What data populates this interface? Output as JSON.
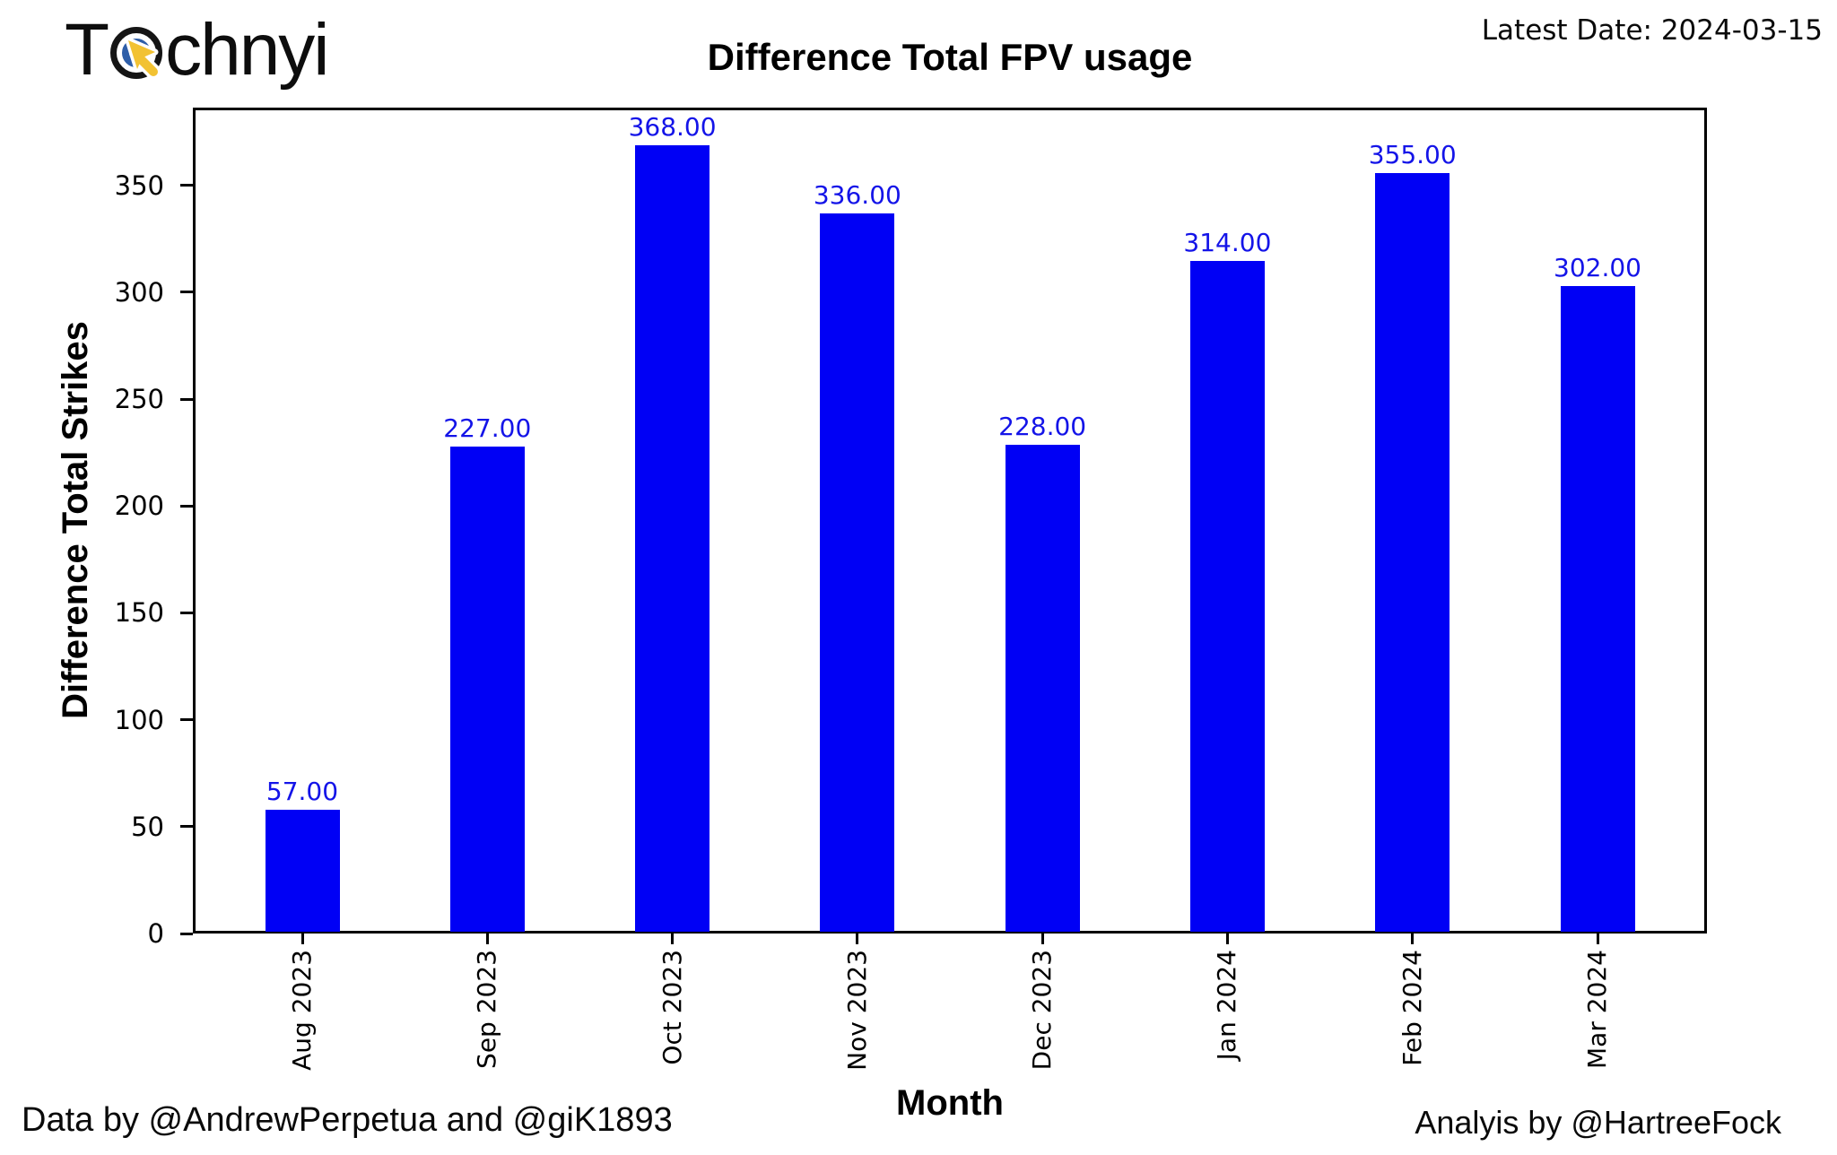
{
  "header": {
    "logo_text_start": "T",
    "logo_text_end": "chnyi",
    "latest_date": "Latest Date: 2024-03-15"
  },
  "chart_data": {
    "type": "bar",
    "title": "Difference Total FPV usage",
    "xlabel": "Month",
    "ylabel": "Difference Total Strikes",
    "categories": [
      "Aug 2023",
      "Sep 2023",
      "Oct 2023",
      "Nov 2023",
      "Dec 2023",
      "Jan 2024",
      "Feb 2024",
      "Mar 2024"
    ],
    "values": [
      57,
      227,
      368,
      336,
      228,
      314,
      355,
      302
    ],
    "bar_value_labels": [
      "57.00",
      "227.00",
      "368.00",
      "336.00",
      "228.00",
      "314.00",
      "355.00",
      "302.00"
    ],
    "yticks": [
      0,
      50,
      100,
      150,
      200,
      250,
      300,
      350
    ],
    "ylim": [
      0,
      386.4
    ],
    "grid": false,
    "legend": null,
    "bar_color": "#0000f5",
    "value_label_color": "#1414e8",
    "logo_colors": {
      "ring": "#151515",
      "inner_ring": "#2e5ea8",
      "cursor": "#f2c233"
    }
  },
  "footer": {
    "data_credit": "Data by @AndrewPerpetua and @giK1893",
    "analysis_credit": "Analyis by @HartreeFock"
  }
}
